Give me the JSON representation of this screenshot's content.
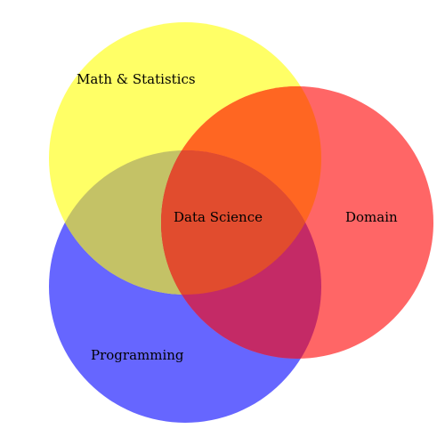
{
  "diagram": {
    "type": "venn",
    "sets": [
      {
        "key": "math",
        "label": "Math & Statistics",
        "color": "#ffff66"
      },
      {
        "key": "domain",
        "label": "Domain",
        "color": "#ff6666"
      },
      {
        "key": "programming",
        "label": "Programming",
        "color": "#6666ff"
      }
    ],
    "overlaps": {
      "math_programming": "#c4c266",
      "math_domain": "#ff6622",
      "domain_programming": "#c42a66",
      "all": "#e14c2e"
    },
    "center_label": "Data Science"
  }
}
